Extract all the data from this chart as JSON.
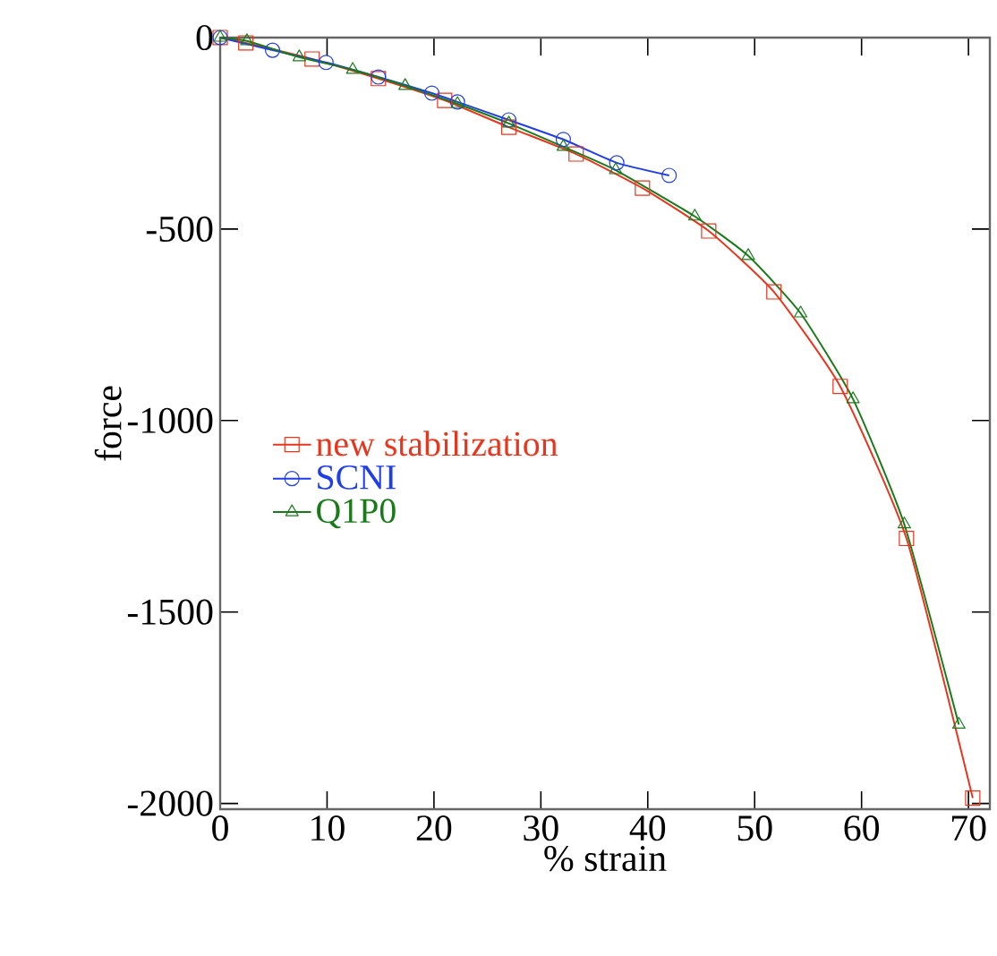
{
  "chart_data": {
    "type": "line",
    "xlabel": "% strain",
    "ylabel": "force",
    "xlim": [
      0,
      72
    ],
    "ylim": [
      -2015,
      0
    ],
    "xticks": [
      0,
      10,
      20,
      30,
      40,
      50,
      60,
      70
    ],
    "yticks": [
      -2000,
      -1500,
      -1000,
      -500,
      0
    ],
    "grid": false,
    "legend": "left",
    "series": [
      {
        "name": "new stabilization",
        "color": "#e8361e",
        "marker": "square",
        "x": [
          0,
          2.4,
          8.6,
          14.8,
          21,
          27,
          33.3,
          39.5,
          45.7,
          51.8,
          58,
          64.2,
          70.4
        ],
        "values": [
          0,
          -14,
          -56,
          -107,
          -164,
          -234,
          -304,
          -393,
          -505,
          -664,
          -911,
          -1308,
          -1986
        ]
      },
      {
        "name": "SCNI",
        "color": "#1f3de8",
        "marker": "circle",
        "x": [
          0,
          4.9,
          9.9,
          14.8,
          19.8,
          22.2,
          27,
          32.1,
          37.1,
          42
        ],
        "values": [
          0,
          -33,
          -65,
          -103,
          -145,
          -168,
          -215,
          -266,
          -327,
          -360
        ]
      },
      {
        "name": "Q1P0",
        "color": "#1a7a1a",
        "marker": "triangle",
        "x": [
          0,
          2.5,
          7.4,
          12.4,
          17.3,
          22.2,
          27,
          32.1,
          37,
          44.4,
          49.4,
          54.3,
          59.2,
          64,
          69.1
        ],
        "values": [
          0,
          -9,
          -51,
          -84,
          -126,
          -173,
          -224,
          -285,
          -346,
          -467,
          -570,
          -720,
          -944,
          -1271,
          -1794
        ]
      }
    ]
  }
}
